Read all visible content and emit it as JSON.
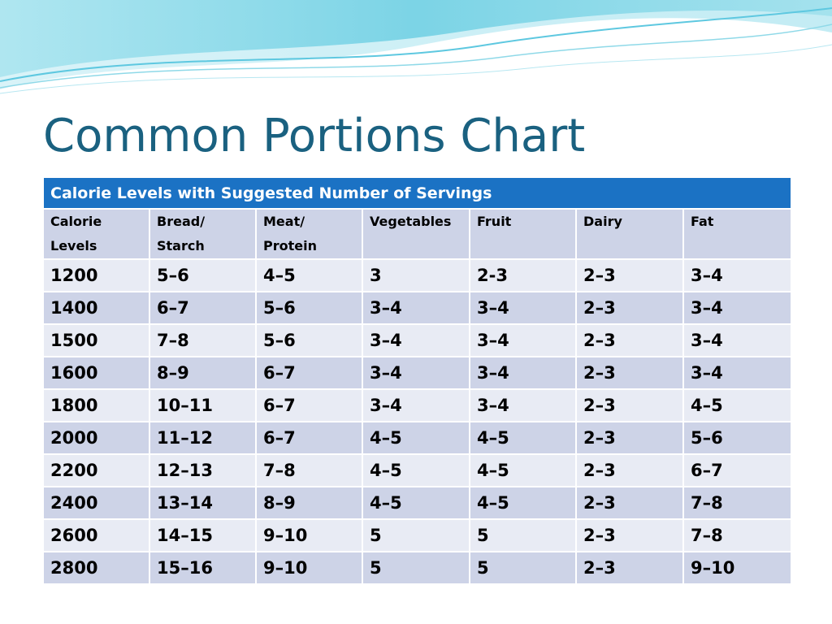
{
  "slide": {
    "title": "Common Portions Chart"
  },
  "table": {
    "caption": "Calorie Levels with Suggested Number of Servings",
    "headers": [
      [
        "Calorie",
        "Levels"
      ],
      [
        "Bread/",
        "Starch"
      ],
      [
        "Meat/",
        "Protein"
      ],
      [
        "Vegetables",
        ""
      ],
      [
        "Fruit",
        ""
      ],
      [
        "Dairy",
        ""
      ],
      [
        "Fat",
        ""
      ]
    ],
    "rows": [
      [
        "1200",
        "5–6",
        "4–5",
        "3",
        "2-3",
        "2–3",
        "3–4"
      ],
      [
        "1400",
        "6–7",
        "5–6",
        "3–4",
        "3–4",
        "2–3",
        "3–4"
      ],
      [
        "1500",
        "7–8",
        "5–6",
        "3–4",
        "3–4",
        "2–3",
        "3–4"
      ],
      [
        "1600",
        "8–9",
        "6–7",
        "3–4",
        "3–4",
        "2–3",
        "3–4"
      ],
      [
        "1800",
        "10–11",
        "6–7",
        "3–4",
        "3–4",
        "2–3",
        "4–5"
      ],
      [
        "2000",
        "11–12",
        "6–7",
        "4–5",
        "4–5",
        "2–3",
        "5–6"
      ],
      [
        "2200",
        "12–13",
        "7–8",
        "4–5",
        "4–5",
        "2–3",
        "6–7"
      ],
      [
        "2400",
        "13–14",
        "8–9",
        "4–5",
        "4–5",
        "2–3",
        "7–8"
      ],
      [
        "2600",
        "14–15",
        "9–10",
        "5",
        "5",
        "2–3",
        "7–8"
      ],
      [
        "2800",
        "15–16",
        "9–10",
        "5",
        "5",
        "2–3",
        "9–10"
      ]
    ]
  },
  "colors": {
    "title": "#1a6180",
    "banner": "#1b72c4",
    "row_dark": "#cdd3e7",
    "row_light": "#e8ebf4",
    "wave": "#5ec8e0"
  }
}
